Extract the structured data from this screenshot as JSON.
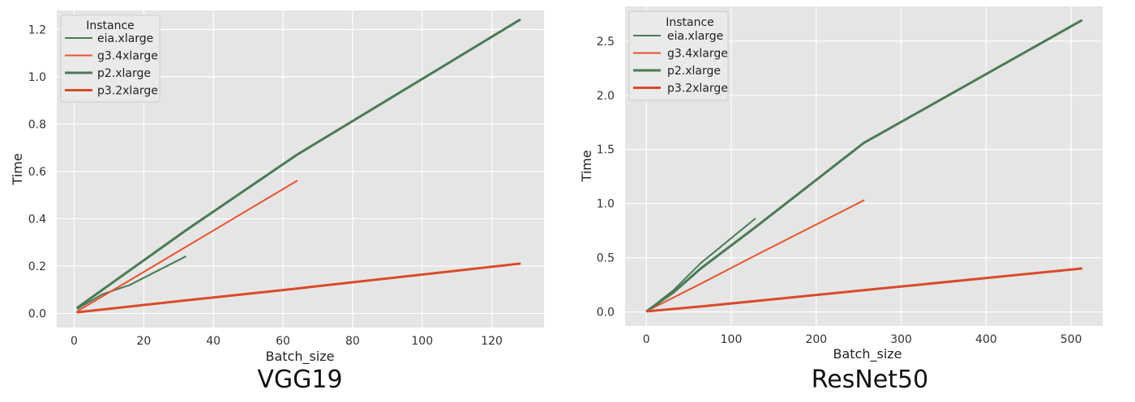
{
  "chart_data": [
    {
      "type": "line",
      "caption": "VGG19",
      "xlabel": "Batch_size",
      "ylabel": "Time",
      "xlim": [
        -5,
        135
      ],
      "ylim": [
        -0.06,
        1.28
      ],
      "xticks": [
        0,
        20,
        40,
        60,
        80,
        100,
        120
      ],
      "yticks": [
        0.0,
        0.2,
        0.4,
        0.6,
        0.8,
        1.0,
        1.2
      ],
      "ytick_decimals": 1,
      "grid": true,
      "legend": {
        "title": "Instance",
        "placement": "top-left"
      },
      "series": [
        {
          "name": "eia.xlarge",
          "color": "#4a7a55",
          "width": 2,
          "x": [
            1,
            8,
            16,
            32
          ],
          "y": [
            0.02,
            0.08,
            0.12,
            0.24
          ]
        },
        {
          "name": "g3.4xlarge",
          "color": "#e8532f",
          "width": 2,
          "x": [
            1,
            16,
            32,
            64
          ],
          "y": [
            0.01,
            0.14,
            0.28,
            0.56
          ]
        },
        {
          "name": "p2.xlarge",
          "color": "#4a7a55",
          "width": 3,
          "x": [
            1,
            32,
            64,
            128
          ],
          "y": [
            0.025,
            0.35,
            0.67,
            1.24
          ]
        },
        {
          "name": "p3.2xlarge",
          "color": "#d84a2a",
          "width": 3,
          "x": [
            1,
            32,
            64,
            128
          ],
          "y": [
            0.005,
            0.055,
            0.105,
            0.21
          ]
        }
      ]
    },
    {
      "type": "line",
      "caption": "ResNet50",
      "xlabel": "Batch_size",
      "ylabel": "Time",
      "xlim": [
        -25,
        537
      ],
      "ylim": [
        -0.13,
        2.82
      ],
      "xticks": [
        0,
        100,
        200,
        300,
        400,
        500
      ],
      "yticks": [
        0.0,
        0.5,
        1.0,
        1.5,
        2.0,
        2.5
      ],
      "ytick_decimals": 1,
      "grid": true,
      "legend": {
        "title": "Instance",
        "placement": "top-left"
      },
      "series": [
        {
          "name": "eia.xlarge",
          "color": "#4a7a55",
          "width": 2,
          "x": [
            1,
            32,
            64,
            128
          ],
          "y": [
            0.01,
            0.2,
            0.45,
            0.86
          ]
        },
        {
          "name": "g3.4xlarge",
          "color": "#e8532f",
          "width": 2,
          "x": [
            1,
            64,
            128,
            256
          ],
          "y": [
            0.01,
            0.26,
            0.52,
            1.03
          ]
        },
        {
          "name": "p2.xlarge",
          "color": "#4a7a55",
          "width": 3,
          "x": [
            1,
            32,
            64,
            128,
            256,
            512
          ],
          "y": [
            0.01,
            0.18,
            0.4,
            0.78,
            1.56,
            2.69
          ]
        },
        {
          "name": "p3.2xlarge",
          "color": "#d84a2a",
          "width": 3,
          "x": [
            1,
            64,
            128,
            256,
            512
          ],
          "y": [
            0.005,
            0.05,
            0.1,
            0.2,
            0.4
          ]
        }
      ]
    }
  ]
}
